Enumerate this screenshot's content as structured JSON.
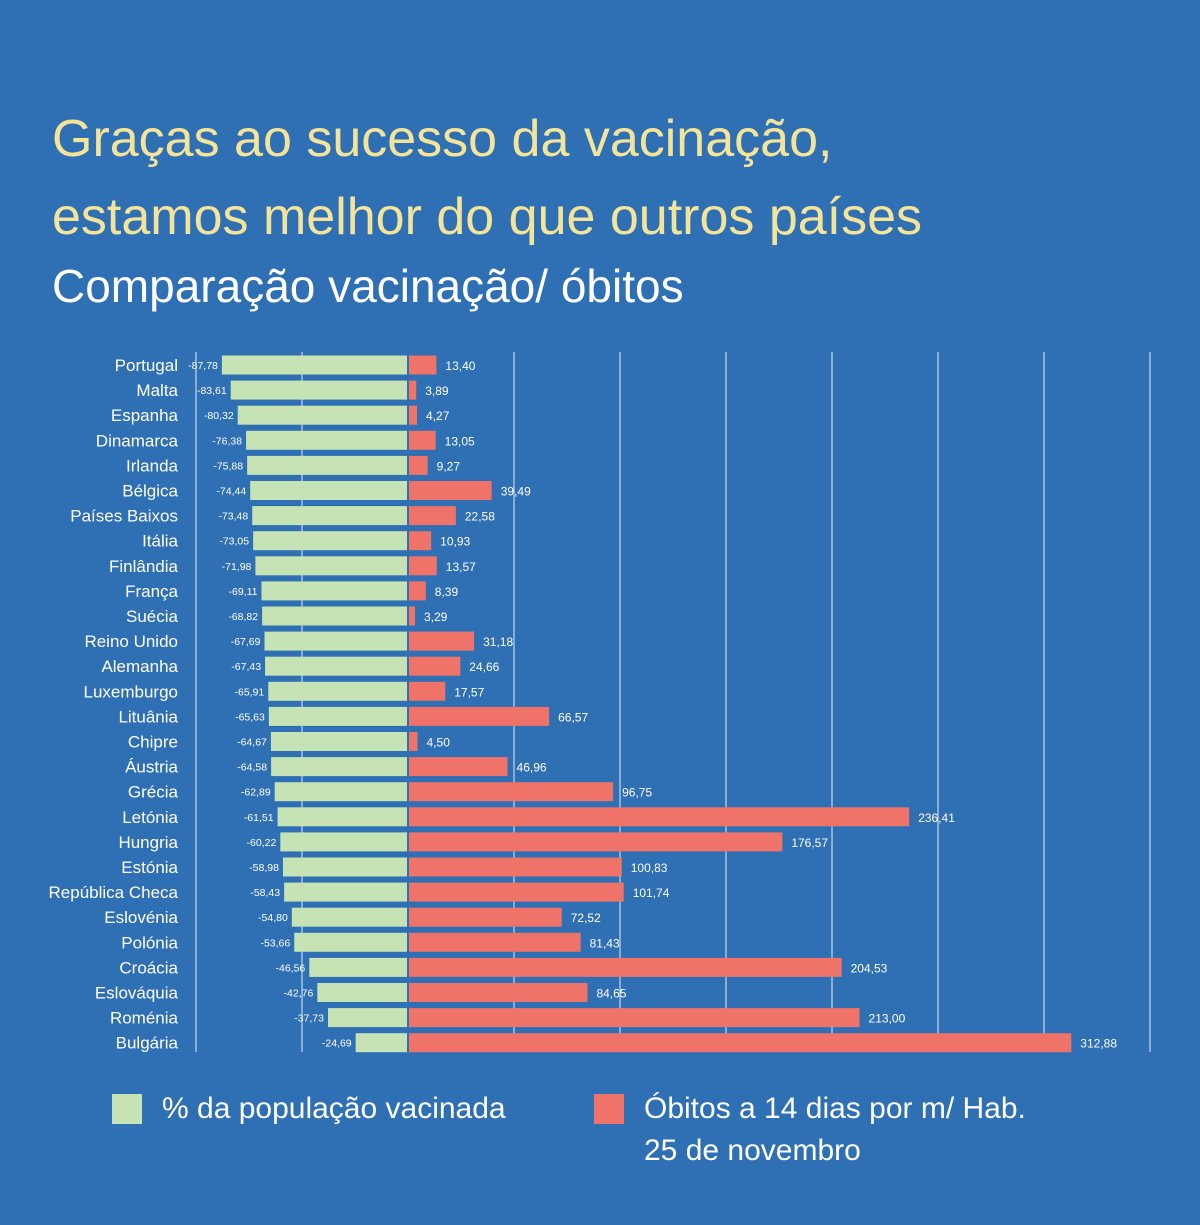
{
  "header": {
    "title_line1": "Graças ao sucesso da vacinação,",
    "title_line2": "estamos melhor do que outros países",
    "subtitle": "Comparação vacinação/ óbitos"
  },
  "colors": {
    "background": "#2f6fb3",
    "vaccinated": "#c5e3b4",
    "deaths": "#ef7368",
    "title": "#f3e49a"
  },
  "chart_data": {
    "type": "bar",
    "orientation": "horizontal",
    "grid": true,
    "categories": [
      "Portugal",
      "Malta",
      "Espanha",
      "Dinamarca",
      "Irlanda",
      "Bélgica",
      "Países Baixos",
      "Itália",
      "Finlândia",
      "França",
      "Suécia",
      "Reino Unido",
      "Alemanha",
      "Luxemburgo",
      "Lituânia",
      "Chipre",
      "Áustria",
      "Grécia",
      "Letónia",
      "Hungria",
      "Estónia",
      "República Checa",
      "Eslovénia",
      "Polónia",
      "Croácia",
      "Eslováquia",
      "Roménia",
      "Bulgária"
    ],
    "series": [
      {
        "name": "% da população vacinada",
        "values": [
          -87.78,
          -83.61,
          -80.32,
          -76.38,
          -75.88,
          -74.44,
          -73.48,
          -73.05,
          -71.98,
          -69.11,
          -68.82,
          -67.69,
          -67.43,
          -65.91,
          -65.63,
          -64.67,
          -64.58,
          -62.89,
          -61.51,
          -60.22,
          -58.98,
          -58.43,
          -54.8,
          -53.66,
          -46.56,
          -42.76,
          -37.73,
          -24.69
        ],
        "labels": [
          "-87,78",
          "-83,61",
          "-80,32",
          "-76,38",
          "-75,88",
          "-74,44",
          "-73,48",
          "-73,05",
          "-71,98",
          "-69,11",
          "-68,82",
          "-67,69",
          "-67,43",
          "-65,91",
          "-65,63",
          "-64,67",
          "-64,58",
          "-62,89",
          "-61,51",
          "-60,22",
          "-58,98",
          "-58,43",
          "-54,80",
          "-53,66",
          "-46,56",
          "-42,76",
          "-37,73",
          "-24,69"
        ]
      },
      {
        "name": "Óbitos a 14 dias por m/ Hab. 25 de novembro",
        "values": [
          13.4,
          3.89,
          4.27,
          13.05,
          9.27,
          39.49,
          22.58,
          10.93,
          13.57,
          8.39,
          3.29,
          31.18,
          24.66,
          17.57,
          66.57,
          4.5,
          46.96,
          96.75,
          236.41,
          176.57,
          100.83,
          101.74,
          72.52,
          81.43,
          204.53,
          84.65,
          213.0,
          312.88
        ],
        "labels": [
          "13,40",
          "3,89",
          "4,27",
          "13,05",
          "9,27",
          "39,49",
          "22,58",
          "10,93",
          "13,57",
          "8,39",
          "3,29",
          "31,18",
          "24,66",
          "17,57",
          "66,57",
          "4,50",
          "46,96",
          "96,75",
          "236,41",
          "176,57",
          "100,83",
          "101,74",
          "72,52",
          "81,43",
          "204,53",
          "84,65",
          "213,00",
          "312,88"
        ]
      }
    ],
    "xlim": [
      -100,
      350
    ],
    "grid_step": 50
  },
  "legend": {
    "vaccinated_label": "% da população vacinada",
    "deaths_label_line1": "Óbitos a 14 dias por m/ Hab.",
    "deaths_label_line2": "25 de novembro"
  }
}
